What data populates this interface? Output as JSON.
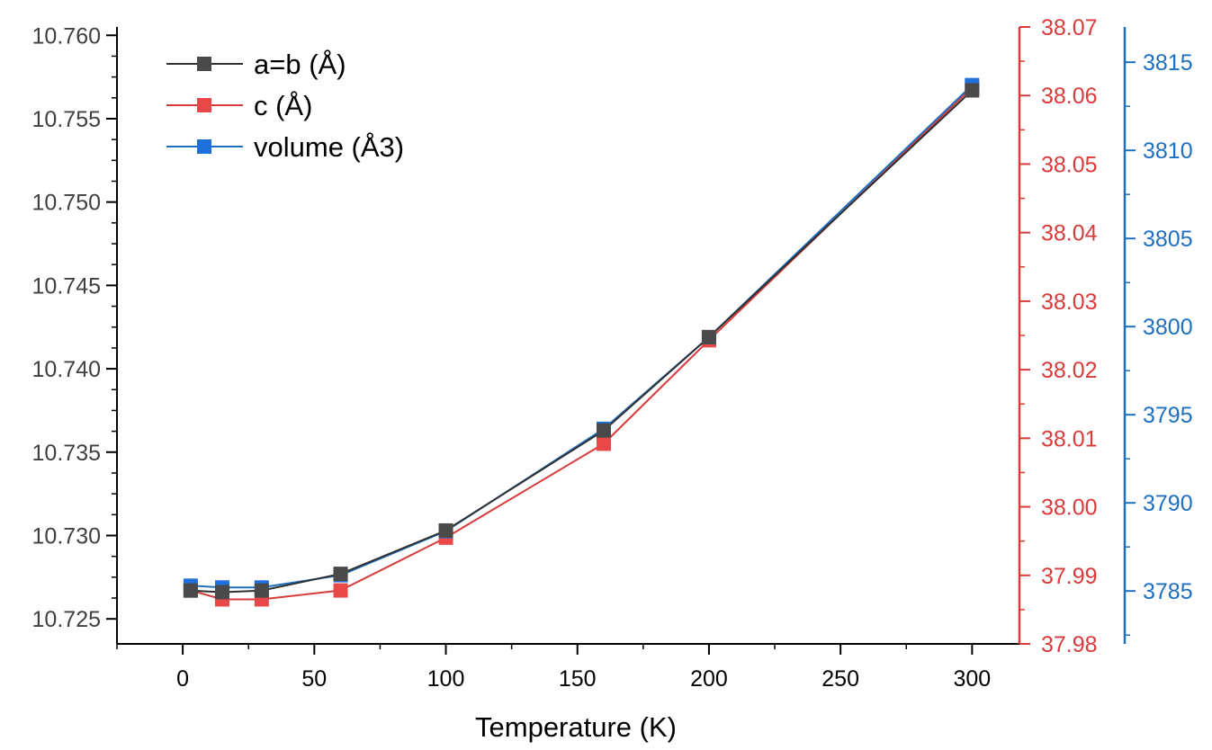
{
  "chart_data": {
    "type": "line",
    "xlabel": "Temperature (K)",
    "x_ticks": [
      0,
      50,
      100,
      150,
      200,
      250,
      300
    ],
    "xlim": [
      -25,
      318
    ],
    "grid": false,
    "legend_position": "top-left",
    "axes": {
      "left": {
        "ylim": [
          10.7235,
          10.7605
        ],
        "ticks": [
          "10.725",
          "10.730",
          "10.735",
          "10.740",
          "10.745",
          "10.750",
          "10.755",
          "10.760"
        ],
        "color": "#404040"
      },
      "right_red": {
        "ylim": [
          37.98,
          38.07
        ],
        "ticks": [
          "37.98",
          "37.99",
          "38.00",
          "38.01",
          "38.02",
          "38.03",
          "38.04",
          "38.05",
          "38.06",
          "38.07"
        ],
        "color": "#d83b3b"
      },
      "right_blue": {
        "ylim": [
          3782.0,
          3817.0
        ],
        "ticks": [
          "3785",
          "3790",
          "3795",
          "3800",
          "3805",
          "3810",
          "3815"
        ],
        "color": "#1f6fbf"
      }
    },
    "series": [
      {
        "name": "a=b (Å)",
        "axis": "left",
        "color": "#4a4a4a",
        "line_color": "#303030",
        "x": [
          3,
          15,
          30,
          60,
          100,
          160,
          200,
          300
        ],
        "values": [
          10.7267,
          10.7266,
          10.7267,
          10.7277,
          10.7303,
          10.7363,
          10.7419,
          10.7567
        ]
      },
      {
        "name": "c (Å)",
        "axis": "right_red",
        "color": "#e84848",
        "line_color": "#d83b3b",
        "x": [
          3,
          15,
          30,
          60,
          100,
          160,
          200,
          300
        ],
        "values": [
          37.9878,
          37.9865,
          37.9865,
          37.9878,
          37.9955,
          38.0092,
          38.0243,
          38.0612
        ]
      },
      {
        "name": "volume (Å3)",
        "axis": "right_blue",
        "color": "#1f6fdc",
        "line_color": "#1f6fbf",
        "x": [
          3,
          15,
          30,
          60,
          100,
          160,
          200,
          300
        ],
        "values": [
          3785.3,
          3785.2,
          3785.2,
          3785.9,
          3788.4,
          3794.2,
          3799.4,
          3813.7
        ]
      }
    ]
  }
}
